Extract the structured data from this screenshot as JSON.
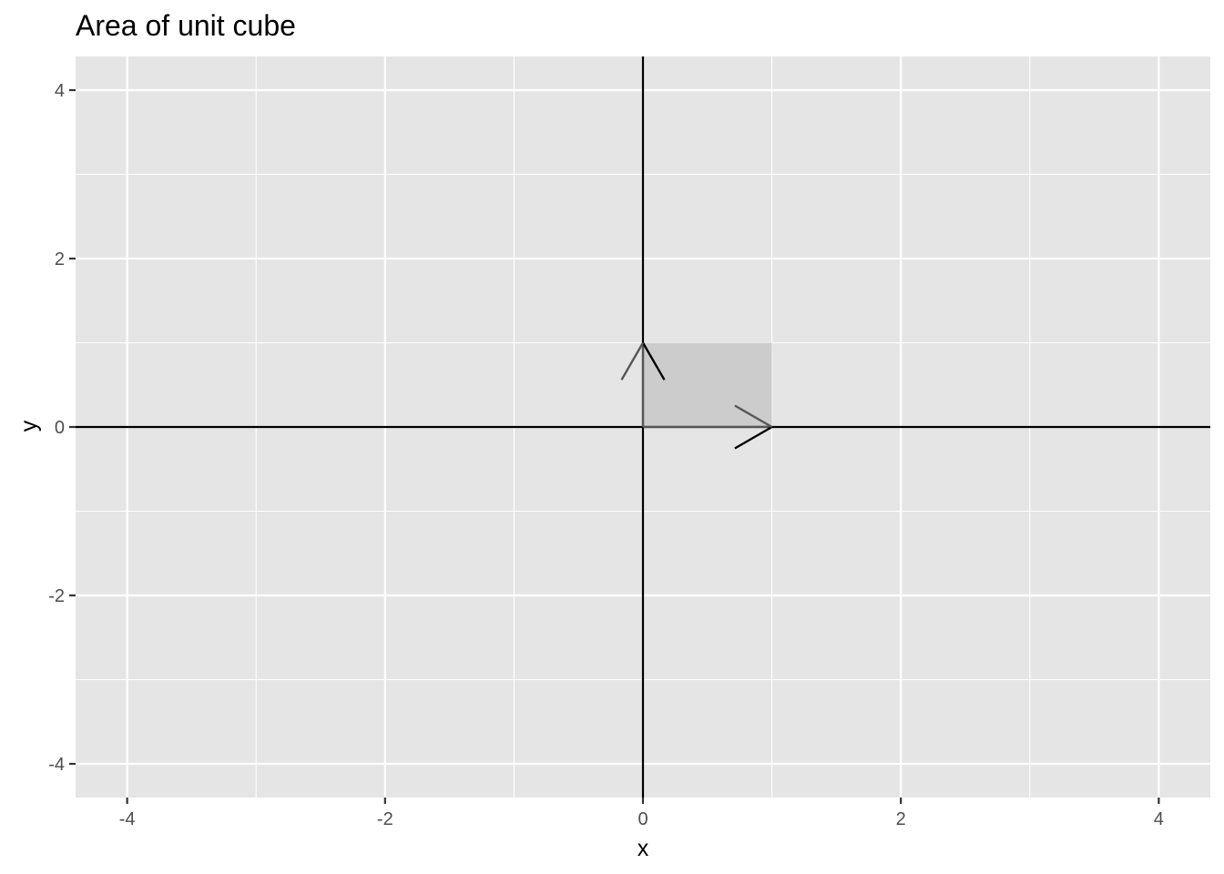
{
  "chart_data": {
    "type": "line",
    "title": "Area of unit cube",
    "xlabel": "x",
    "ylabel": "y",
    "xlim": [
      -4.4,
      4.4
    ],
    "ylim": [
      -4.4,
      4.4
    ],
    "x_ticks": [
      -4,
      -2,
      0,
      2,
      4
    ],
    "y_ticks": [
      -4,
      -2,
      0,
      2,
      4
    ],
    "x_tick_labels": [
      "-4",
      "-2",
      "0",
      "2",
      "4"
    ],
    "y_tick_labels": [
      "-4",
      "-2",
      "0",
      "2",
      "4"
    ],
    "grid": true,
    "reference_lines": [
      {
        "orientation": "horizontal",
        "value": 0
      },
      {
        "orientation": "vertical",
        "value": 0
      }
    ],
    "shaded_region": {
      "x": [
        0,
        1,
        1,
        0
      ],
      "y": [
        0,
        0,
        1,
        1
      ],
      "color": "#cccccc"
    },
    "vectors": [
      {
        "from": [
          0,
          0
        ],
        "to": [
          1,
          0
        ]
      },
      {
        "from": [
          0,
          0
        ],
        "to": [
          0,
          1
        ]
      }
    ],
    "colors": {
      "panel": "#e5e5e5",
      "grid": "#ffffff",
      "axis_line": "#000000",
      "shade": "#cccccc",
      "text": "#4d4d4d"
    }
  }
}
